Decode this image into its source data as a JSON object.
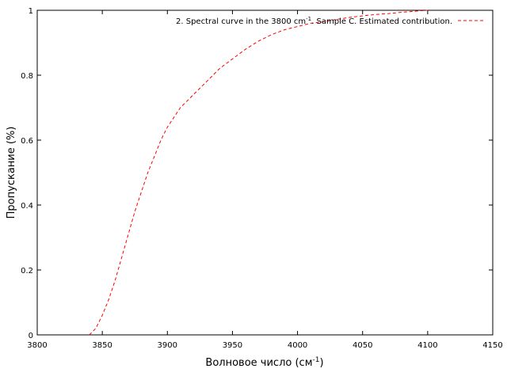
{
  "chart_data": {
    "type": "line",
    "xlabel": "Волновое число (см",
    "xlabel_sup": "-1",
    "xlabel_suffix": ")",
    "ylabel": "Пропускание (%)",
    "xlim": [
      3800,
      4150
    ],
    "ylim": [
      0,
      1
    ],
    "xticks": [
      "3800",
      "3850",
      "3900",
      "3950",
      "4000",
      "4050",
      "4100",
      "4150"
    ],
    "yticks": [
      "0",
      "0.2",
      "0.4",
      "0.6",
      "0.8",
      "1"
    ],
    "legend_position": "top-right",
    "grid": false,
    "series": [
      {
        "name": "2. Spectral curve in the 3800 cm",
        "name_sup": "-1",
        "name_suffix": ". Sample C.  Estimated contribution.",
        "color": "#ff0000",
        "dash": "dashed",
        "x": [
          3840,
          3845,
          3850,
          3855,
          3860,
          3865,
          3870,
          3875,
          3880,
          3885,
          3890,
          3895,
          3900,
          3905,
          3910,
          3920,
          3930,
          3940,
          3950,
          3960,
          3970,
          3980,
          3990,
          4000,
          4010,
          4020,
          4030,
          4040,
          4050,
          4060,
          4070,
          4080,
          4090,
          4100
        ],
        "y": [
          0.0,
          0.02,
          0.06,
          0.11,
          0.17,
          0.24,
          0.31,
          0.38,
          0.44,
          0.5,
          0.55,
          0.6,
          0.64,
          0.67,
          0.7,
          0.74,
          0.78,
          0.82,
          0.85,
          0.88,
          0.905,
          0.925,
          0.94,
          0.95,
          0.96,
          0.965,
          0.972,
          0.978,
          0.983,
          0.987,
          0.99,
          0.994,
          0.997,
          1.0
        ]
      }
    ]
  }
}
